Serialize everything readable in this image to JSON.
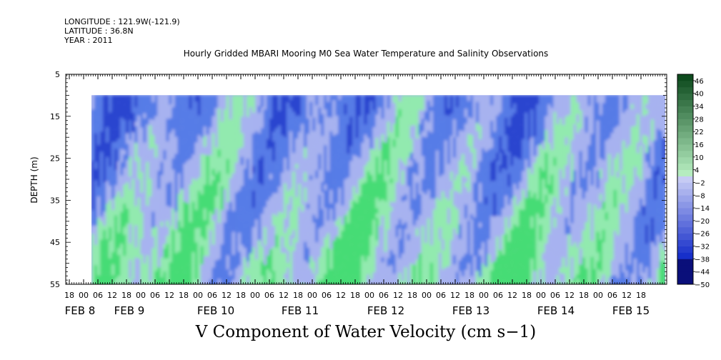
{
  "header": {
    "longitude": "LONGITUDE : 121.9W(-121.9)",
    "latitude": "LATITUDE : 36.8N",
    "year": "YEAR : 2011"
  },
  "chart_data": {
    "type": "heatmap",
    "title": "Hourly Gridded MBARI Mooring M0 Sea Water Temperature and Salinity Observations",
    "xlabel": "V Component of Water Velocity (cm s−1)",
    "ylabel": "DEPTH (m)",
    "y_range": [
      5,
      55
    ],
    "y_inverted": true,
    "y_ticks": [
      5,
      15,
      25,
      35,
      45,
      55
    ],
    "data_depth_range": [
      10,
      55
    ],
    "x_hour_ticks": [
      "18",
      "00",
      "06",
      "12",
      "18",
      "00",
      "06",
      "12",
      "18",
      "00",
      "06",
      "12",
      "18",
      "00",
      "06",
      "12",
      "18",
      "00",
      "06",
      "12",
      "18",
      "00",
      "06",
      "12",
      "18",
      "00",
      "06",
      "12",
      "18",
      "00",
      "06",
      "12",
      "18",
      "00",
      "06",
      "12",
      "18",
      "00",
      "06",
      "12",
      "18"
    ],
    "x_date_labels": [
      "FEB 8",
      "FEB 9",
      "FEB 10",
      "FEB 11",
      "FEB 12",
      "FEB 13",
      "FEB 14",
      "FEB 15"
    ],
    "colorbar": {
      "ticks": [
        "46",
        "40",
        "34",
        "28",
        "22",
        "16",
        "10",
        "4",
        "−2",
        "−8",
        "−14",
        "−20",
        "−26",
        "−32",
        "−38",
        "−44",
        "−50"
      ],
      "min": -50,
      "max": 49,
      "step": 3
    },
    "colors": {
      "neg_strong": "#1f3ccc",
      "neg_mid": "#4f77e6",
      "neg_light": "#a7b2f0",
      "pos_light": "#90f0a8",
      "pos_mid": "#3fe06a",
      "pos_strong": "#0f7a2c"
    }
  }
}
